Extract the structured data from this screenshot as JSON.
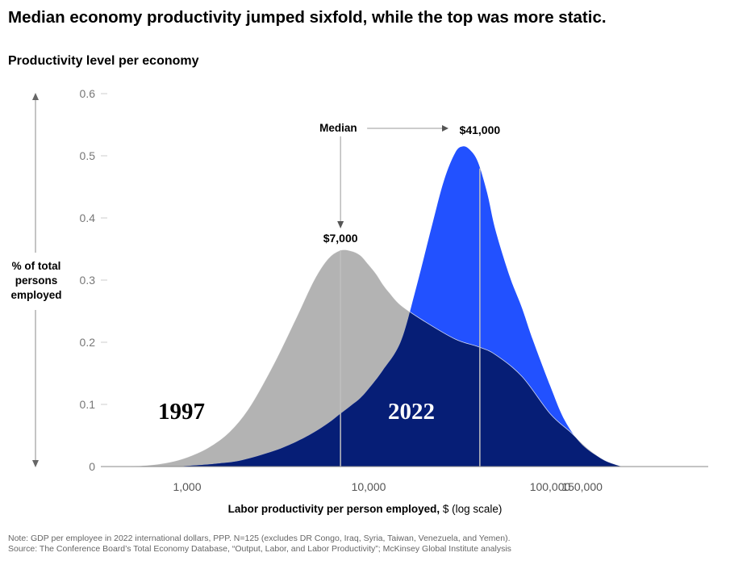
{
  "title": "Median economy productivity jumped sixfold, while the top was more static.",
  "subtitle": "Productivity level per economy",
  "y_axis_label": "% of total persons employed",
  "x_axis_label_bold": "Labor productivity per person employed,",
  "x_axis_label_rest": " $ (log scale)",
  "footer": {
    "note": "Note: GDP per employee in 2022 international dollars, PPP. N=125 (excludes DR Congo, Iraq, Syria, Taiwan, Venezuela, and Yemen).",
    "source": "Source: The Conference Board’s Total Economy Database, “Output, Labor, and Labor Productivity”; McKinsey Global Institute analysis"
  },
  "colors": {
    "series_1997": "#b3b3b3",
    "series_2022_overlap": "#061e76",
    "series_2022_above": "#2251ff",
    "axis": "#888888",
    "median_line": "#bfbfbf"
  },
  "chart_data": {
    "type": "area",
    "x_scale": "log",
    "xlim": [
      400,
      250000
    ],
    "ylim": [
      0,
      0.6
    ],
    "y_ticks": [
      0,
      0.1,
      0.2,
      0.3,
      0.4,
      0.5,
      0.6
    ],
    "y_tick_labels": [
      "0",
      "0.1",
      "0.2",
      "0.3",
      "0.4",
      "0.5",
      "0.6"
    ],
    "x_ticks": [
      1000,
      10000,
      100000,
      150000
    ],
    "x_tick_labels": [
      "1,000",
      "10,000",
      "100,000",
      "150,000"
    ],
    "series": [
      {
        "name": "1997",
        "median": 7000,
        "median_label": "$7,000",
        "x": [
          420,
          600,
          800,
          1000,
          1300,
          1700,
          2200,
          3000,
          4000,
          5000,
          6000,
          7000,
          8000,
          9000,
          10000,
          11000,
          12000,
          13000,
          15000,
          20000,
          30000,
          40000,
          50000,
          70000,
          100000,
          130000,
          160000,
          200000,
          250000
        ],
        "y": [
          0.0,
          0.002,
          0.007,
          0.015,
          0.03,
          0.055,
          0.095,
          0.165,
          0.24,
          0.3,
          0.335,
          0.348,
          0.347,
          0.34,
          0.325,
          0.31,
          0.293,
          0.28,
          0.26,
          0.235,
          0.205,
          0.193,
          0.18,
          0.145,
          0.085,
          0.055,
          0.03,
          0.01,
          0.0
        ]
      },
      {
        "name": "2022",
        "median": 41000,
        "median_label": "$41,000",
        "x": [
          700,
          1000,
          1500,
          2000,
          3000,
          4000,
          5000,
          6000,
          7000,
          8000,
          9000,
          10000,
          12000,
          15000,
          18000,
          22000,
          26000,
          30000,
          33000,
          36000,
          40000,
          45000,
          50000,
          60000,
          70000,
          80000,
          100000,
          120000,
          150000,
          200000,
          250000
        ],
        "y": [
          0.0,
          0.001,
          0.005,
          0.01,
          0.025,
          0.04,
          0.055,
          0.07,
          0.085,
          0.098,
          0.11,
          0.125,
          0.155,
          0.2,
          0.28,
          0.38,
          0.46,
          0.505,
          0.515,
          0.51,
          0.49,
          0.44,
          0.38,
          0.305,
          0.255,
          0.205,
          0.13,
          0.075,
          0.035,
          0.01,
          0.0
        ]
      }
    ],
    "annotations": {
      "median": "Median",
      "label_1997": "1997",
      "label_2022": "2022"
    }
  }
}
